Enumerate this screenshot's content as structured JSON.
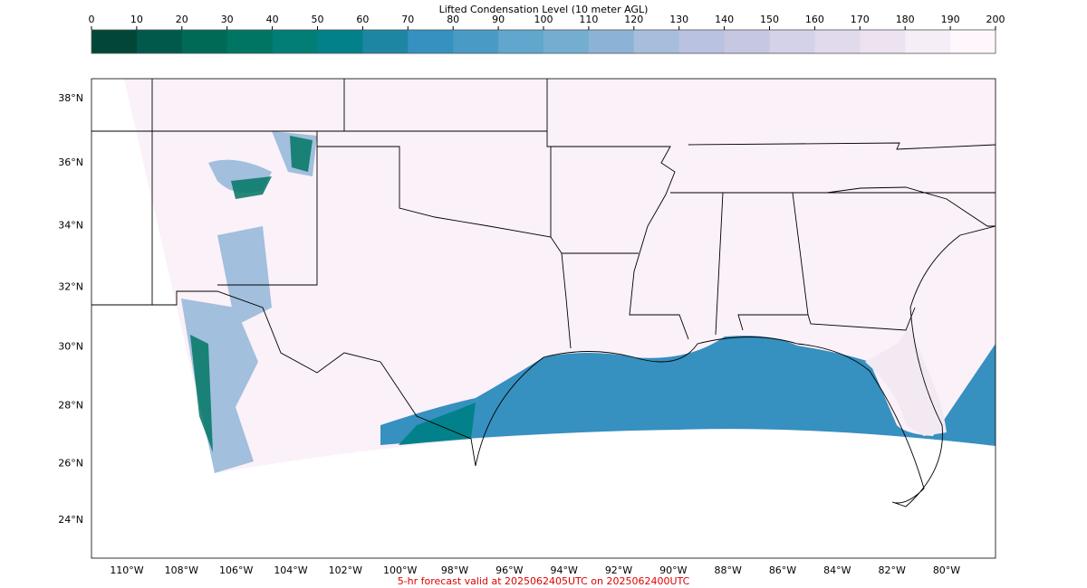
{
  "colorbar": {
    "title": "Lifted Condensation Level (10 meter AGL)",
    "lim": [
      0,
      200
    ],
    "ticks": [
      0,
      10,
      20,
      30,
      40,
      50,
      60,
      70,
      80,
      90,
      100,
      110,
      120,
      130,
      140,
      150,
      160,
      170,
      180,
      190,
      200
    ],
    "colors": [
      "#014636",
      "#01594c",
      "#016a57",
      "#017564",
      "#027e76",
      "#02818a",
      "#1d87a3",
      "#3690c0",
      "#4a9ac6",
      "#61a6cc",
      "#73aed0",
      "#8cb3d6",
      "#a6bddb",
      "#b9c2e0",
      "#c6c7e1",
      "#d3d2e8",
      "#e1d9ec",
      "#ece2f0",
      "#f5eef6",
      "#fff7fb"
    ]
  },
  "map": {
    "lat_labels": [
      {
        "value": 24,
        "label": "24°N"
      },
      {
        "value": 26,
        "label": "26°N"
      },
      {
        "value": 28,
        "label": "28°N"
      },
      {
        "value": 30,
        "label": "30°N"
      },
      {
        "value": 32,
        "label": "32°N"
      },
      {
        "value": 34,
        "label": "34°N"
      },
      {
        "value": 36,
        "label": "36°N"
      },
      {
        "value": 38,
        "label": "38°N"
      }
    ],
    "lon_labels": [
      {
        "value": -110,
        "label": "110°W"
      },
      {
        "value": -108,
        "label": "108°W"
      },
      {
        "value": -106,
        "label": "106°W"
      },
      {
        "value": -104,
        "label": "104°W"
      },
      {
        "value": -102,
        "label": "102°W"
      },
      {
        "value": -100,
        "label": "100°W"
      },
      {
        "value": -98,
        "label": "98°W"
      },
      {
        "value": -96,
        "label": "96°W"
      },
      {
        "value": -94,
        "label": "94°W"
      },
      {
        "value": -92,
        "label": "92°W"
      },
      {
        "value": -90,
        "label": "90°W"
      },
      {
        "value": -88,
        "label": "88°W"
      },
      {
        "value": -86,
        "label": "86°W"
      },
      {
        "value": -84,
        "label": "84°W"
      },
      {
        "value": -82,
        "label": "82°W"
      },
      {
        "value": -80,
        "label": "80°W"
      }
    ]
  },
  "footer": "5-hr forecast valid at 2025062405UTC on 2025062400UTC"
}
